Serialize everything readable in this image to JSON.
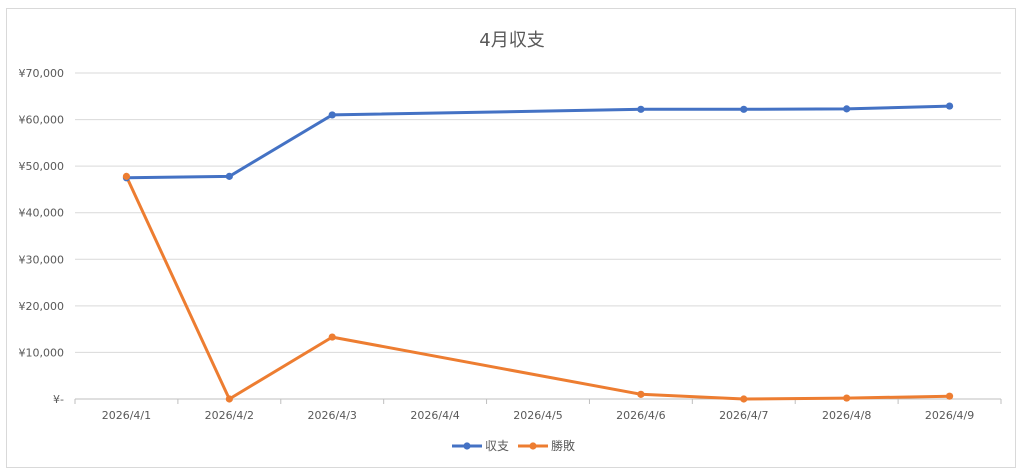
{
  "chart_data": {
    "type": "line",
    "title": "4月収支",
    "categories": [
      "2026/4/1",
      "2026/4/2",
      "2026/4/3",
      "2026/4/4",
      "2026/4/5",
      "2026/4/6",
      "2026/4/7",
      "2026/4/8",
      "2026/4/9"
    ],
    "series": [
      {
        "name": "収支",
        "color": "#4472c4",
        "values": [
          47500,
          47800,
          61000,
          null,
          null,
          62200,
          62200,
          62300,
          62900
        ]
      },
      {
        "name": "勝敗",
        "color": "#ed7d31",
        "values": [
          47800,
          0,
          13300,
          null,
          null,
          1000,
          0,
          200,
          600
        ]
      }
    ],
    "y_tick_labels": [
      "¥-",
      "¥10,000",
      "¥20,000",
      "¥30,000",
      "¥40,000",
      "¥50,000",
      "¥60,000",
      "¥70,000"
    ],
    "ylim": [
      0,
      70000
    ],
    "gridlines": true,
    "legend_position": "bottom",
    "gap_handling": "connect"
  }
}
